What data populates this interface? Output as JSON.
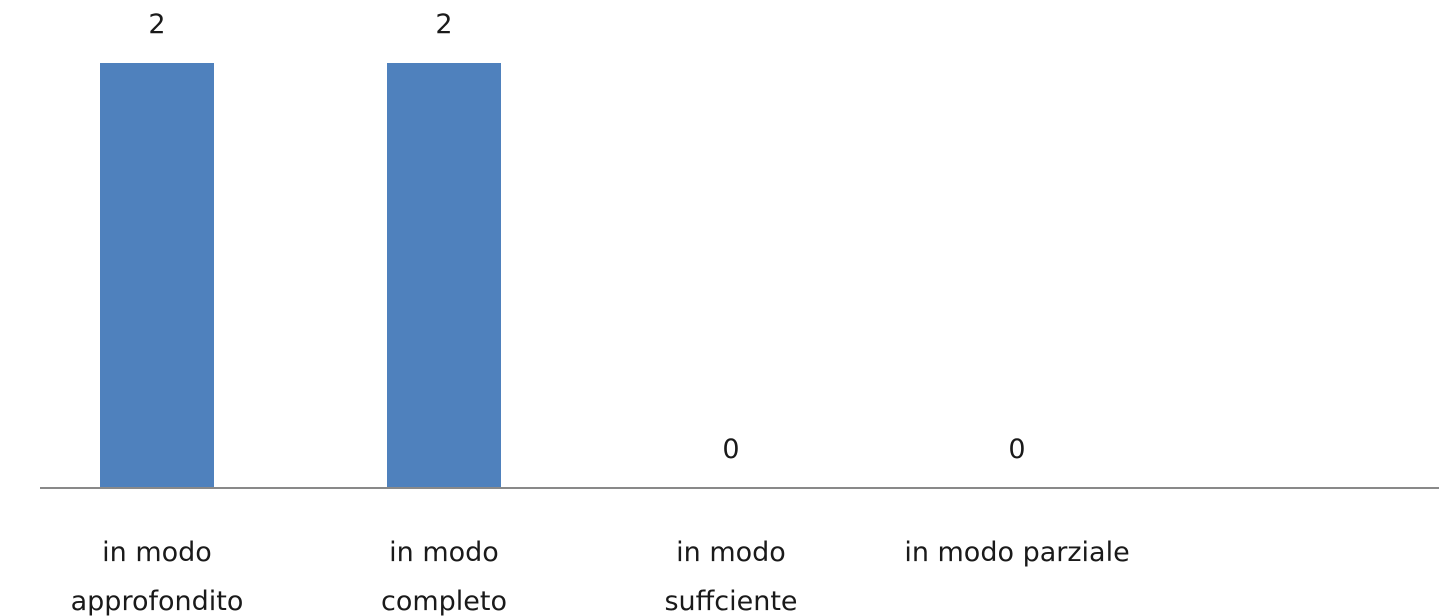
{
  "chart_data": {
    "type": "bar",
    "categories": [
      "in modo approfondito",
      "in modo completo",
      "in modo suffciente",
      "in modo parziale"
    ],
    "category_label_lines": [
      [
        "in modo",
        "approfondito"
      ],
      [
        "in modo",
        "completo"
      ],
      [
        "in modo",
        "suffciente"
      ],
      [
        "in modo parziale"
      ]
    ],
    "values": [
      2,
      2,
      0,
      0
    ],
    "data_labels": [
      "2",
      "2",
      "0",
      "0"
    ],
    "ylim": [
      0,
      2
    ],
    "grid": false,
    "legend": "none",
    "title": "",
    "xlabel": "",
    "ylabel": "",
    "colors": {
      "bar": "#4f81bd",
      "axis": "#898989",
      "text": "#1a1a1a"
    }
  }
}
